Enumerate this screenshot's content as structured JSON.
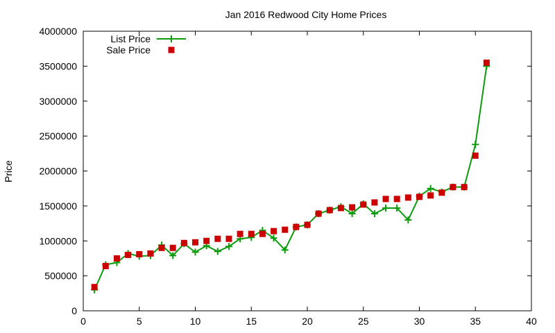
{
  "chart_data": {
    "type": "line",
    "title": "Jan 2016 Redwood City Home Prices",
    "xlabel": "",
    "ylabel": "Price",
    "xlim": [
      0,
      40
    ],
    "ylim": [
      0,
      4000000
    ],
    "xticks": [
      "0",
      "5",
      "10",
      "15",
      "20",
      "25",
      "30",
      "35",
      "40"
    ],
    "yticks": [
      "0",
      "500000",
      "1000000",
      "1500000",
      "2000000",
      "2500000",
      "3000000",
      "3500000",
      "4000000"
    ],
    "grid": false,
    "legend_position": "top-left",
    "series": [
      {
        "name": "List Price",
        "style": "linespoints",
        "marker": "plus",
        "color": "#0a9a0a",
        "x": [
          1,
          2,
          3,
          4,
          5,
          6,
          7,
          8,
          9,
          10,
          11,
          12,
          13,
          14,
          15,
          16,
          17,
          18,
          19,
          20,
          21,
          22,
          23,
          24,
          25,
          26,
          27,
          28,
          29,
          30,
          31,
          32,
          33,
          34,
          35,
          36
        ],
        "values": [
          300000,
          660000,
          690000,
          820000,
          780000,
          790000,
          940000,
          790000,
          960000,
          840000,
          930000,
          850000,
          920000,
          1030000,
          1050000,
          1150000,
          1040000,
          870000,
          1200000,
          1230000,
          1390000,
          1440000,
          1490000,
          1390000,
          1530000,
          1390000,
          1470000,
          1470000,
          1300000,
          1640000,
          1750000,
          1700000,
          1770000,
          1770000,
          2380000,
          3500000
        ]
      },
      {
        "name": "Sale Price",
        "style": "points",
        "marker": "square",
        "color": "#cc0000",
        "x": [
          1,
          2,
          3,
          4,
          5,
          6,
          7,
          8,
          9,
          10,
          11,
          12,
          13,
          14,
          15,
          16,
          17,
          18,
          19,
          20,
          21,
          22,
          23,
          24,
          25,
          26,
          27,
          28,
          29,
          30,
          31,
          32,
          33,
          34,
          35,
          36
        ],
        "values": [
          340000,
          640000,
          750000,
          800000,
          810000,
          820000,
          900000,
          900000,
          970000,
          980000,
          1000000,
          1030000,
          1030000,
          1100000,
          1100000,
          1100000,
          1140000,
          1160000,
          1200000,
          1230000,
          1390000,
          1440000,
          1470000,
          1480000,
          1520000,
          1550000,
          1600000,
          1600000,
          1620000,
          1630000,
          1650000,
          1690000,
          1770000,
          1770000,
          2220000,
          3550000
        ]
      }
    ]
  }
}
